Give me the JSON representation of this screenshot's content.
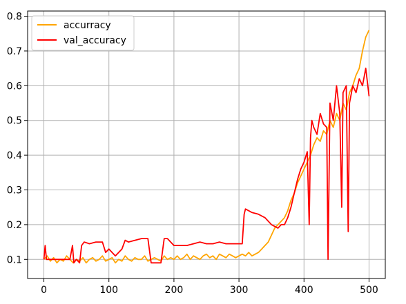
{
  "chart_data": {
    "type": "line",
    "title": "",
    "xlabel": "",
    "ylabel": "",
    "xlim": [
      -25,
      525
    ],
    "ylim": [
      0.045,
      0.815
    ],
    "x_ticks": [
      0,
      100,
      200,
      300,
      400,
      500
    ],
    "x_tick_labels": [
      "0",
      "100",
      "200",
      "300",
      "400",
      "500"
    ],
    "y_ticks": [
      0.1,
      0.2,
      0.3,
      0.4,
      0.5,
      0.6,
      0.7,
      0.8
    ],
    "y_tick_labels": [
      "0.1",
      "0.2",
      "0.3",
      "0.4",
      "0.5",
      "0.6",
      "0.7",
      "0.8"
    ],
    "grid": true,
    "legend_position": "top-left",
    "series": [
      {
        "name": "accurracy",
        "color": "#ffa500",
        "x": [
          0,
          5,
          10,
          15,
          20,
          25,
          30,
          35,
          40,
          45,
          50,
          55,
          60,
          65,
          70,
          75,
          80,
          85,
          90,
          95,
          100,
          105,
          110,
          115,
          120,
          125,
          130,
          135,
          140,
          145,
          150,
          155,
          160,
          165,
          170,
          175,
          180,
          185,
          190,
          195,
          200,
          205,
          210,
          215,
          220,
          225,
          230,
          235,
          240,
          245,
          250,
          255,
          260,
          265,
          270,
          275,
          280,
          285,
          290,
          295,
          300,
          305,
          310,
          315,
          320,
          325,
          330,
          335,
          340,
          345,
          350,
          355,
          360,
          365,
          370,
          375,
          380,
          385,
          390,
          395,
          400,
          405,
          410,
          415,
          420,
          425,
          430,
          435,
          440,
          445,
          450,
          455,
          460,
          465,
          470,
          475,
          480,
          485,
          490,
          495,
          500
        ],
        "values": [
          0.1,
          0.11,
          0.095,
          0.105,
          0.09,
          0.1,
          0.095,
          0.11,
          0.1,
          0.09,
          0.1,
          0.095,
          0.105,
          0.09,
          0.1,
          0.105,
          0.095,
          0.1,
          0.11,
          0.095,
          0.1,
          0.105,
          0.09,
          0.1,
          0.095,
          0.11,
          0.1,
          0.095,
          0.105,
          0.1,
          0.1,
          0.11,
          0.095,
          0.1,
          0.105,
          0.1,
          0.095,
          0.11,
          0.1,
          0.105,
          0.1,
          0.11,
          0.1,
          0.105,
          0.115,
          0.1,
          0.11,
          0.105,
          0.1,
          0.11,
          0.115,
          0.105,
          0.11,
          0.1,
          0.115,
          0.11,
          0.105,
          0.115,
          0.11,
          0.105,
          0.11,
          0.115,
          0.11,
          0.12,
          0.11,
          0.115,
          0.12,
          0.13,
          0.14,
          0.15,
          0.17,
          0.19,
          0.2,
          0.21,
          0.22,
          0.24,
          0.27,
          0.29,
          0.32,
          0.34,
          0.36,
          0.38,
          0.4,
          0.43,
          0.45,
          0.44,
          0.47,
          0.46,
          0.5,
          0.48,
          0.52,
          0.5,
          0.55,
          0.53,
          0.58,
          0.6,
          0.63,
          0.65,
          0.7,
          0.74,
          0.76
        ]
      },
      {
        "name": "val_accuracy",
        "color": "#ff0000",
        "x": [
          0,
          2,
          4,
          6,
          10,
          20,
          30,
          40,
          44,
          46,
          50,
          55,
          58,
          62,
          70,
          80,
          90,
          95,
          100,
          110,
          120,
          125,
          130,
          140,
          150,
          160,
          165,
          170,
          175,
          180,
          185,
          190,
          200,
          210,
          220,
          230,
          240,
          250,
          260,
          270,
          280,
          290,
          300,
          305,
          308,
          310,
          315,
          320,
          330,
          340,
          345,
          350,
          355,
          360,
          365,
          370,
          375,
          380,
          385,
          390,
          395,
          400,
          405,
          408,
          410,
          412,
          415,
          420,
          425,
          430,
          435,
          437,
          440,
          445,
          450,
          455,
          458,
          460,
          465,
          468,
          470,
          475,
          480,
          485,
          490,
          495,
          500
        ],
        "values": [
          0.1,
          0.14,
          0.1,
          0.1,
          0.1,
          0.1,
          0.1,
          0.1,
          0.14,
          0.09,
          0.1,
          0.09,
          0.14,
          0.15,
          0.145,
          0.15,
          0.15,
          0.12,
          0.13,
          0.11,
          0.13,
          0.155,
          0.15,
          0.155,
          0.16,
          0.16,
          0.09,
          0.09,
          0.09,
          0.09,
          0.16,
          0.16,
          0.14,
          0.14,
          0.14,
          0.145,
          0.15,
          0.145,
          0.145,
          0.15,
          0.145,
          0.145,
          0.145,
          0.145,
          0.23,
          0.245,
          0.24,
          0.235,
          0.23,
          0.22,
          0.21,
          0.2,
          0.195,
          0.19,
          0.2,
          0.2,
          0.22,
          0.25,
          0.29,
          0.33,
          0.36,
          0.38,
          0.41,
          0.2,
          0.45,
          0.5,
          0.48,
          0.46,
          0.52,
          0.49,
          0.48,
          0.1,
          0.55,
          0.5,
          0.6,
          0.52,
          0.25,
          0.58,
          0.6,
          0.18,
          0.55,
          0.6,
          0.58,
          0.62,
          0.6,
          0.65,
          0.57
        ]
      }
    ]
  }
}
